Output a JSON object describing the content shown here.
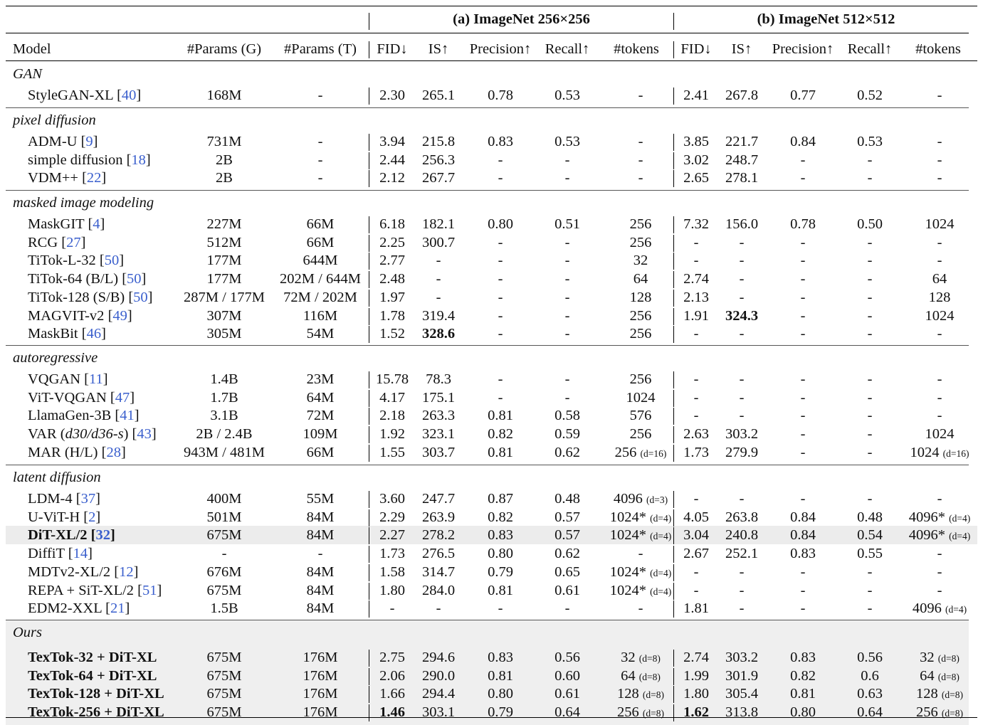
{
  "columns": [
    "Model",
    "#Params (G)",
    "#Params (T)",
    "FID↓",
    "IS↑",
    "Precision↑",
    "Recall↑",
    "#tokens",
    "FID↓",
    "IS↑",
    "Precision↑",
    "Recall↑",
    "#tokens"
  ],
  "groups": {
    "a": "(a) ImageNet 256×256",
    "b": "(b) ImageNet 512×512"
  },
  "sections": [
    {
      "title": "GAN",
      "rows": [
        {
          "model": "StyleGAN-XL",
          "ref": "40",
          "pg": "168M",
          "pt": "-",
          "a": [
            "2.30",
            "265.1",
            "0.78",
            "0.53",
            "-"
          ],
          "b": [
            "2.41",
            "267.8",
            "0.77",
            "0.52",
            "-"
          ]
        }
      ]
    },
    {
      "title": "pixel diffusion",
      "rows": [
        {
          "model": "ADM-U",
          "ref": "9",
          "pg": "731M",
          "pt": "-",
          "a": [
            "3.94",
            "215.8",
            "0.83",
            "0.53",
            "-"
          ],
          "b": [
            "3.85",
            "221.7",
            "0.84",
            "0.53",
            "-"
          ]
        },
        {
          "model": "simple diffusion",
          "ref": "18",
          "pg": "2B",
          "pt": "-",
          "a": [
            "2.44",
            "256.3",
            "-",
            "-",
            "-"
          ],
          "b": [
            "3.02",
            "248.7",
            "-",
            "-",
            "-"
          ]
        },
        {
          "model": "VDM++",
          "ref": "22",
          "pg": "2B",
          "pt": "-",
          "a": [
            "2.12",
            "267.7",
            "-",
            "-",
            "-"
          ],
          "b": [
            "2.65",
            "278.1",
            "-",
            "-",
            "-"
          ]
        }
      ]
    },
    {
      "title": "masked image modeling",
      "rows": [
        {
          "model": "MaskGIT",
          "ref": "4",
          "pg": "227M",
          "pt": "66M",
          "a": [
            "6.18",
            "182.1",
            "0.80",
            "0.51",
            "256"
          ],
          "b": [
            "7.32",
            "156.0",
            "0.78",
            "0.50",
            "1024"
          ]
        },
        {
          "model": "RCG",
          "ref": "27",
          "pg": "512M",
          "pt": "66M",
          "a": [
            "2.25",
            "300.7",
            "-",
            "-",
            "256"
          ],
          "b": [
            "-",
            "-",
            "-",
            "-",
            "-"
          ]
        },
        {
          "model": "TiTok-L-32",
          "ref": "50",
          "pg": "177M",
          "pt": "644M",
          "a": [
            "2.77",
            "-",
            "-",
            "-",
            "32"
          ],
          "b": [
            "-",
            "-",
            "-",
            "-",
            "-"
          ]
        },
        {
          "model": "TiTok-64 (B/L)",
          "ref": "50",
          "pg": "177M",
          "pt": "202M / 644M",
          "a": [
            "2.48",
            "-",
            "-",
            "-",
            "64"
          ],
          "b": [
            "2.74",
            "-",
            "-",
            "-",
            "64"
          ]
        },
        {
          "model": "TiTok-128 (S/B)",
          "ref": "50",
          "pg": "287M / 177M",
          "pt": "72M / 202M",
          "a": [
            "1.97",
            "-",
            "-",
            "-",
            "128"
          ],
          "b": [
            "2.13",
            "-",
            "-",
            "-",
            "128"
          ]
        },
        {
          "model": "MAGVIT-v2",
          "ref": "49",
          "pg": "307M",
          "pt": "116M",
          "a": [
            "1.78",
            "319.4",
            "-",
            "-",
            "256"
          ],
          "b": [
            "1.91",
            "324.3",
            "-",
            "-",
            "1024"
          ],
          "bold_b": [
            1
          ]
        },
        {
          "model": "MaskBit",
          "ref": "46",
          "pg": "305M",
          "pt": "54M",
          "a": [
            "1.52",
            "328.6",
            "-",
            "-",
            "256"
          ],
          "b": [
            "-",
            "-",
            "-",
            "-",
            "-"
          ],
          "bold_a": [
            1
          ]
        }
      ]
    },
    {
      "title": "autoregressive",
      "rows": [
        {
          "model": "VQGAN",
          "ref": "11",
          "pg": "1.4B",
          "pt": "23M",
          "a": [
            "15.78",
            "78.3",
            "-",
            "-",
            "256"
          ],
          "b": [
            "-",
            "-",
            "-",
            "-",
            "-"
          ]
        },
        {
          "model": "ViT-VQGAN",
          "ref": "47",
          "pg": "1.7B",
          "pt": "64M",
          "a": [
            "4.17",
            "175.1",
            "-",
            "-",
            "1024"
          ],
          "b": [
            "-",
            "-",
            "-",
            "-",
            "-"
          ]
        },
        {
          "model": "LlamaGen-3B",
          "ref": "41",
          "pg": "3.1B",
          "pt": "72M",
          "a": [
            "2.18",
            "263.3",
            "0.81",
            "0.58",
            "576"
          ],
          "b": [
            "-",
            "-",
            "-",
            "-",
            "-"
          ]
        },
        {
          "model": "VAR (",
          "model_it": "d30/d36-s",
          "model_end": ")",
          "ref": "43",
          "pg": "2B / 2.4B",
          "pt": "109M",
          "a": [
            "1.92",
            "323.1",
            "0.82",
            "0.59",
            "256"
          ],
          "b": [
            "2.63",
            "303.2",
            "-",
            "-",
            "1024"
          ]
        },
        {
          "model": "MAR (H/L) ",
          "ref": "28",
          "pg": "943M / 481M",
          "pt": "66M",
          "a": [
            "1.55",
            "303.7",
            "0.81",
            "0.62",
            "256"
          ],
          "b": [
            "1.73",
            "279.9",
            "-",
            "-",
            "1024"
          ],
          "tok_a_note": "(d=16)",
          "tok_b_note": "(d=16)"
        }
      ]
    },
    {
      "title": "latent diffusion",
      "rows": [
        {
          "model": "LDM-4",
          "ref": "37",
          "pg": "400M",
          "pt": "55M",
          "a": [
            "3.60",
            "247.7",
            "0.87",
            "0.48",
            "4096"
          ],
          "b": [
            "-",
            "-",
            "-",
            "-",
            "-"
          ],
          "tok_a_note": "(d=3)"
        },
        {
          "model": "U-ViT-H",
          "ref": "2",
          "pg": "501M",
          "pt": "84M",
          "a": [
            "2.29",
            "263.9",
            "0.82",
            "0.57",
            "1024*"
          ],
          "b": [
            "4.05",
            "263.8",
            "0.84",
            "0.48",
            "4096*"
          ],
          "tok_a_note": "(d=4)",
          "tok_b_note": "(d=4)"
        },
        {
          "model": "DiT-XL/2",
          "ref": "32",
          "pg": "675M",
          "pt": "84M",
          "highlight": true,
          "bold_model": true,
          "a": [
            "2.27",
            "278.2",
            "0.83",
            "0.57",
            "1024*"
          ],
          "b": [
            "3.04",
            "240.8",
            "0.84",
            "0.54",
            "4096*"
          ],
          "tok_a_note": "(d=4)",
          "tok_b_note": "(d=4)"
        },
        {
          "model": "DiffiT",
          "ref": "14",
          "pg": "-",
          "pt": "-",
          "a": [
            "1.73",
            "276.5",
            "0.80",
            "0.62",
            "-"
          ],
          "b": [
            "2.67",
            "252.1",
            "0.83",
            "0.55",
            "-"
          ]
        },
        {
          "model": "MDTv2-XL/2",
          "ref": "12",
          "pg": "676M",
          "pt": "84M",
          "a": [
            "1.58",
            "314.7",
            "0.79",
            "0.65",
            "1024*"
          ],
          "b": [
            "-",
            "-",
            "-",
            "-",
            "-"
          ],
          "tok_a_note": "(d=4)"
        },
        {
          "model": "REPA + SiT-XL/2",
          "ref": "51",
          "pg": "675M",
          "pt": "84M",
          "a": [
            "1.80",
            "284.0",
            "0.81",
            "0.61",
            "1024*"
          ],
          "b": [
            "-",
            "-",
            "-",
            "-",
            "-"
          ],
          "tok_a_note": "(d=4)"
        },
        {
          "model": "EDM2-XXL",
          "ref": "21",
          "pg": "1.5B",
          "pt": "84M",
          "a": [
            "-",
            "-",
            "-",
            "-",
            "-"
          ],
          "b": [
            "1.81",
            "-",
            "-",
            "-",
            "4096"
          ],
          "tok_b_note": "(d=4)"
        }
      ]
    },
    {
      "title": "Ours",
      "ours": true,
      "rows": [
        {
          "model": "TexTok-32 + DiT-XL",
          "pg": "675M",
          "pt": "176M",
          "a": [
            "2.75",
            "294.6",
            "0.83",
            "0.56",
            "32"
          ],
          "b": [
            "2.74",
            "303.2",
            "0.83",
            "0.56",
            "32"
          ],
          "tok_a_note": "(d=8)",
          "tok_b_note": "(d=8)"
        },
        {
          "model": "TexTok-64 + DiT-XL",
          "pg": "675M",
          "pt": "176M",
          "a": [
            "2.06",
            "290.0",
            "0.81",
            "0.60",
            "64"
          ],
          "b": [
            "1.99",
            "301.9",
            "0.82",
            "0.6",
            "64"
          ],
          "tok_a_note": "(d=8)",
          "tok_b_note": "(d=8)"
        },
        {
          "model": "TexTok-128 + DiT-XL",
          "pg": "675M",
          "pt": "176M",
          "a": [
            "1.66",
            "294.4",
            "0.80",
            "0.61",
            "128"
          ],
          "b": [
            "1.80",
            "305.4",
            "0.81",
            "0.63",
            "128"
          ],
          "tok_a_note": "(d=8)",
          "tok_b_note": "(d=8)"
        },
        {
          "model": "TexTok-256 + DiT-XL",
          "pg": "675M",
          "pt": "176M",
          "a": [
            "1.46",
            "303.1",
            "0.79",
            "0.64",
            "256"
          ],
          "b": [
            "1.62",
            "313.8",
            "0.80",
            "0.64",
            "256"
          ],
          "tok_a_note": "(d=8)",
          "tok_b_note": "(d=8)",
          "bold_a": [
            0
          ],
          "bold_b": [
            0
          ]
        }
      ]
    }
  ]
}
